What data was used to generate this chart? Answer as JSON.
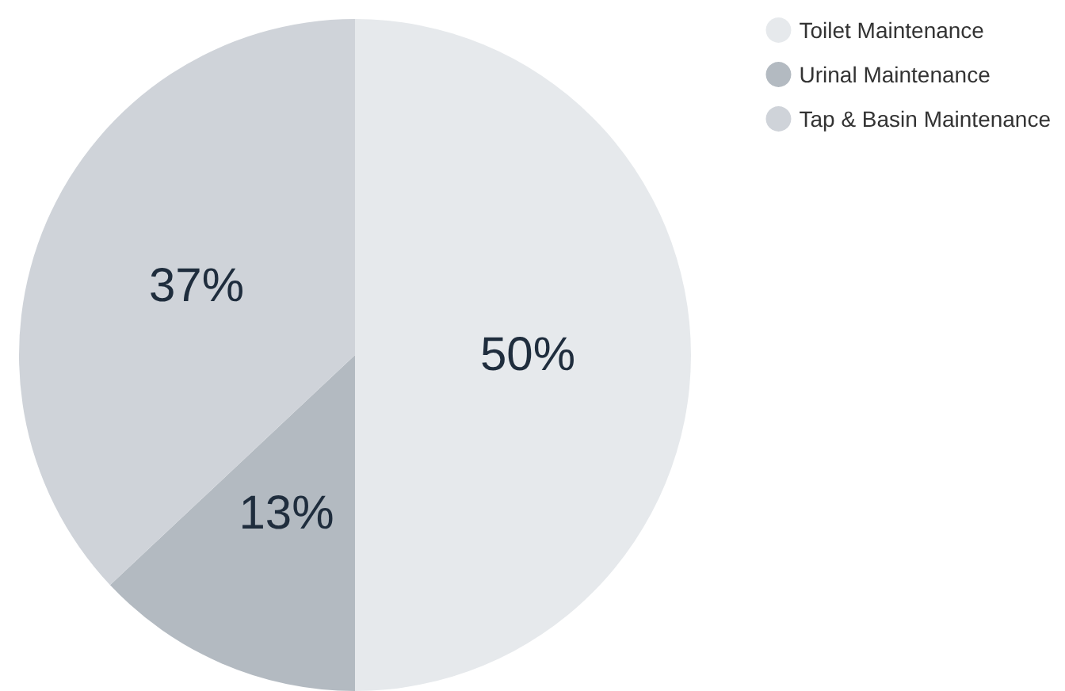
{
  "chart_data": {
    "type": "pie",
    "categories": [
      "Toilet Maintenance",
      "Urinal Maintenance",
      "Tap & Basin Maintenance"
    ],
    "values": [
      50,
      13,
      37
    ],
    "colors": [
      "#e6e9ec",
      "#b3bac1",
      "#cfd3d9"
    ],
    "value_labels": [
      "50%",
      "13%",
      "37%"
    ],
    "legend": "top right"
  }
}
